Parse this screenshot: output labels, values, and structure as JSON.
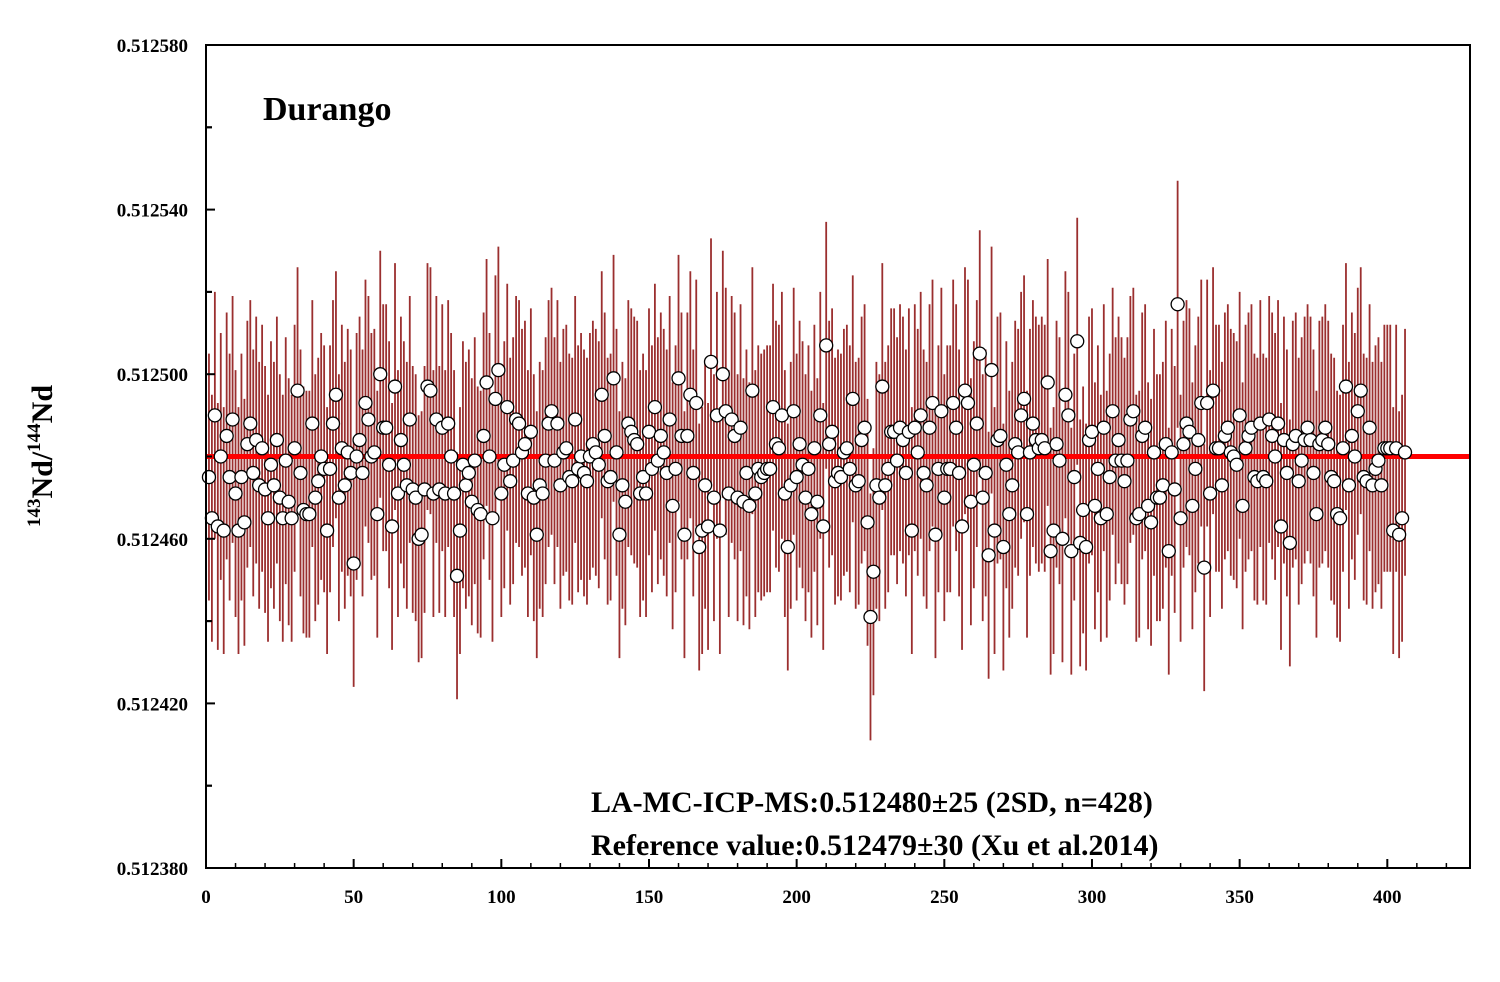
{
  "chart_data": {
    "type": "scatter",
    "panel_label": "Durango",
    "ylabel": {
      "sup1": "143",
      "text1": "Nd/",
      "sup2": "144",
      "text2": "Nd"
    },
    "xlabel": "",
    "xlim": [
      0,
      428
    ],
    "ylim": [
      0.51238,
      0.51258
    ],
    "xticks": [
      0,
      50,
      100,
      150,
      200,
      250,
      300,
      350,
      400
    ],
    "yticks": [
      0.51238,
      0.51242,
      0.51246,
      0.5125,
      0.51254,
      0.51258
    ],
    "ytick_labels": [
      "0.512380",
      "0.512420",
      "0.512460",
      "0.512500",
      "0.512540",
      "0.512580"
    ],
    "grid": false,
    "mean_line": {
      "value": 0.51248,
      "color": "#ff0000"
    },
    "marker": {
      "fill": "#ffffff",
      "stroke": "#000000"
    },
    "errorbar_color": "#9b2f2f",
    "n": 428,
    "sample_y": [
      0.512475,
      0.512465,
      0.51249,
      0.512463,
      0.51248,
      0.512462,
      0.512485,
      0.512475,
      0.512489,
      0.512471,
      0.512462,
      0.512475,
      0.512464,
      0.512483,
      0.512488,
      0.512476,
      0.512484,
      0.512473,
      0.512482,
      0.512472,
      0.512465,
      0.512478,
      0.512473,
      0.512484,
      0.51247,
      0.512465,
      0.512479,
      0.512469,
      0.512465,
      0.512482,
      0.512496,
      0.512476,
      0.512467,
      0.512466,
      0.512466,
      0.512488,
      0.51247,
      0.512474,
      0.51248,
      0.512477,
      0.512462,
      0.512477,
      0.512488,
      0.512495,
      0.51247,
      0.512482,
      0.512473,
      0.512481,
      0.512476,
      0.512454,
      0.51248,
      0.512484,
      0.512476,
      0.512493,
      0.512489,
      0.51248,
      0.512481,
      0.512466,
      0.5125,
      0.512487,
      0.512487,
      0.512478,
      0.512463,
      0.512497,
      0.512471,
      0.512484,
      0.512478,
      0.512473,
      0.512489,
      0.512472,
      0.51247,
      0.51246,
      0.512461,
      0.512472,
      0.512497,
      0.512496,
      0.512471,
      0.512489,
      0.512472,
      0.512487,
      0.512471,
      0.512488,
      0.51248,
      0.512471,
      0.512451,
      0.512462,
      0.512478,
      0.512473,
      0.512476,
      0.512469,
      0.512479,
      0.512467,
      0.512466,
      0.512485,
      0.512498,
      0.51248,
      0.512465,
      0.512494,
      0.512501,
      0.512471,
      0.512478,
      0.512492,
      0.512474,
      0.512479,
      0.512489,
      0.512488,
      0.512481,
      0.512483,
      0.512471,
      0.512486,
      0.51247,
      0.512461,
      0.512473,
      0.512471,
      0.512479,
      0.512488,
      0.512491,
      0.512479,
      0.512488,
      0.512473,
      0.512481,
      0.512482,
      0.512475,
      0.512474,
      0.512489,
      0.512477,
      0.51248,
      0.512476,
      0.512474,
      0.51248,
      0.512483,
      0.512481,
      0.512478,
      0.512495,
      0.512485,
      0.512474,
      0.512475,
      0.512499,
      0.512481,
      0.512461,
      0.512473,
      0.512469,
      0.512488,
      0.512486,
      0.512484,
      0.512483,
      0.512471,
      0.512475,
      0.512471,
      0.512486,
      0.512477,
      0.512492,
      0.512479,
      0.512485,
      0.512481,
      0.512476,
      0.512489,
      0.512468,
      0.512477,
      0.512499,
      0.512485,
      0.512461,
      0.512485,
      0.512495,
      0.512476,
      0.512493,
      0.512458,
      0.512462,
      0.512473,
      0.512463,
      0.512503,
      0.51247,
      0.51249,
      0.512462,
      0.5125,
      0.512491,
      0.512471,
      0.512489,
      0.512485,
      0.51247,
      0.512487,
      0.512469,
      0.512476,
      0.512468,
      0.512496,
      0.512471,
      0.512477,
      0.512475,
      0.512476,
      0.512477,
      0.512477,
      0.512492,
      0.512483,
      0.512482,
      0.51249,
      0.512471,
      0.512458,
      0.512473,
      0.512491,
      0.512475,
      0.512483,
      0.512478,
      0.51247,
      0.512477,
      0.512466,
      0.512482,
      0.512469,
      0.51249,
      0.512463,
      0.512507,
      0.512483,
      0.512486,
      0.512474,
      0.512476,
      0.512475,
      0.512481,
      0.512482,
      0.512477,
      0.512494,
      0.512473,
      0.512474,
      0.512484,
      0.512487,
      0.512464,
      0.512441,
      0.512452,
      0.512473,
      0.51247,
      0.512497,
      0.512473,
      0.512477,
      0.512486,
      0.512486,
      0.512479,
      0.512487,
      0.512484,
      0.512476,
      0.512486,
      0.512462,
      0.512487,
      0.512481,
      0.51249,
      0.512476,
      0.512473,
      0.512487,
      0.512493,
      0.512461,
      0.512477,
      0.512491,
      0.51247,
      0.512477,
      0.512477,
      0.512493,
      0.512487,
      0.512476,
      0.512463,
      0.512496,
      0.512493,
      0.512469,
      0.512478,
      0.512488,
      0.512505,
      0.51247,
      0.512476,
      0.512456,
      0.512501,
      0.512462,
      0.512484,
      0.512485,
      0.512458,
      0.512478,
      0.512466,
      0.512473,
      0.512483,
      0.512481,
      0.51249,
      0.512494,
      0.512466,
      0.512481,
      0.512488,
      0.512484,
      0.512482,
      0.512484,
      0.512482,
      0.512498,
      0.512457,
      0.512462,
      0.512483,
      0.512479,
      0.51246,
      0.512495,
      0.51249,
      0.512457,
      0.512475,
      0.512508,
      0.512459,
      0.512467,
      0.512458,
      0.512484,
      0.512486,
      0.512468,
      0.512477,
      0.512465,
      0.512487,
      0.512466,
      0.512475,
      0.512491,
      0.512479,
      0.512484,
      0.512479,
      0.512474,
      0.512479,
      0.512489,
      0.512491,
      0.512465,
      0.512466,
      0.512485,
      0.512487,
      0.512468,
      0.512464,
      0.512481,
      0.51247,
      0.51247,
      0.512473,
      0.512483,
      0.512457,
      0.512481,
      0.512472,
      0.512517,
      0.512465,
      0.512483,
      0.512488,
      0.512486,
      0.512468,
      0.512477,
      0.512484,
      0.512493,
      0.512453,
      0.512493,
      0.512471,
      0.512496,
      0.512482,
      0.512482,
      0.512473,
      0.512485,
      0.512487,
      0.512481,
      0.51248,
      0.512478,
      0.51249,
      0.512468,
      0.512482,
      0.512485,
      0.512487,
      0.512475,
      0.512474,
      0.512488,
      0.512475,
      0.512474,
      0.512489,
      0.512485,
      0.51248,
      0.512488,
      0.512463,
      0.512484,
      0.512476,
      0.512459,
      0.512483,
      0.512485,
      0.512474,
      0.512479,
      0.512484,
      0.512487,
      0.512484,
      0.512476,
      0.512466,
      0.512483,
      0.512484,
      0.512487,
      0.512483,
      0.512475,
      0.512474,
      0.512466,
      0.512465,
      0.512482,
      0.512497,
      0.512473,
      0.512485,
      0.51248,
      0.512491,
      0.512496,
      0.512475,
      0.512474,
      0.512487,
      0.512473,
      0.512477,
      0.512479,
      0.512473,
      0.512482,
      0.512482,
      0.512482,
      0.512462,
      0.512482,
      0.512461,
      0.512465,
      0.512481
    ],
    "annotations": [
      "LA-MC-ICP-MS:0.512480±25 (2SD, n=428)",
      "Reference value:0.512479±30 (Xu et al.2014)"
    ]
  }
}
